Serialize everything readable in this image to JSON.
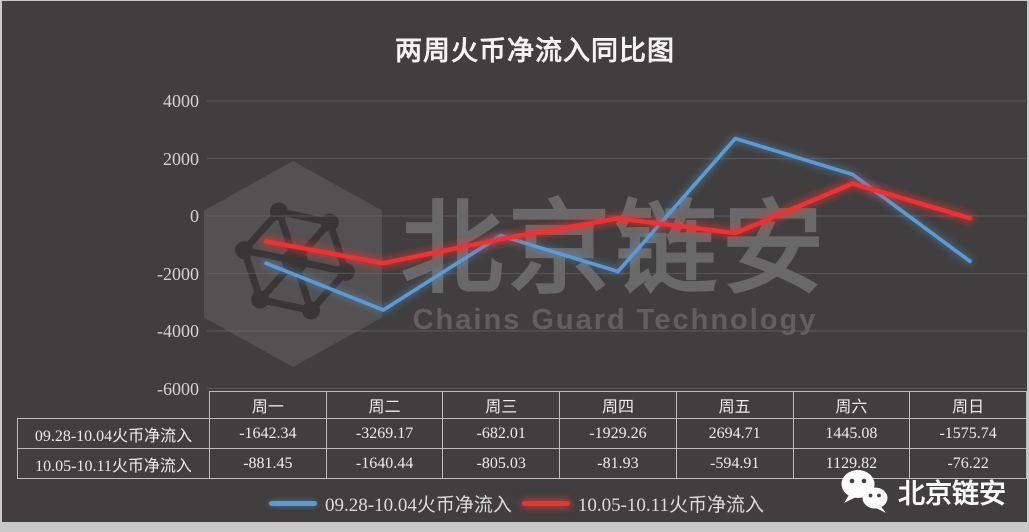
{
  "title": "两周火币净流入同比图",
  "watermark": {
    "cn": "北京链安",
    "en": "Chains Guard Technology"
  },
  "badge": {
    "label": "北京链安"
  },
  "colors": {
    "background": "#403e3e",
    "frame": "#c9c9c9",
    "gridline": "#6a6868",
    "table_border": "#bdbdbd",
    "series_blue": "#5b9bd5",
    "series_red": "#f23030"
  },
  "chart_data": {
    "type": "line",
    "title": "两周火币净流入同比图",
    "categories": [
      "周一",
      "周二",
      "周三",
      "周四",
      "周五",
      "周六",
      "周日"
    ],
    "series": [
      {
        "name": "09.28-10.04火币净流入",
        "color": "#5b9bd5",
        "values": [
          -1642.34,
          -3269.17,
          -682.01,
          -1929.26,
          2694.71,
          1445.08,
          -1575.74
        ]
      },
      {
        "name": "10.05-10.11火币净流入",
        "color": "#f23030",
        "values": [
          -881.45,
          -1640.44,
          -805.03,
          -81.93,
          -594.91,
          1129.82,
          -76.22
        ]
      }
    ],
    "yticks": [
      4000,
      2000,
      0,
      -2000,
      -4000,
      -6000
    ],
    "ylim": [
      -6000,
      4000
    ],
    "grid": true,
    "legend_position": "bottom",
    "xlabel": "",
    "ylabel": ""
  }
}
